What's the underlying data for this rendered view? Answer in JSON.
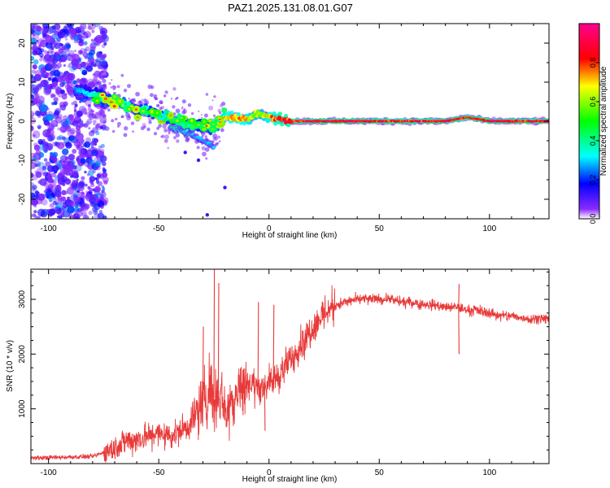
{
  "title": "PAZ1.2025.131.08.01.G07",
  "chart_data": [
    {
      "type": "heatmap",
      "title": "PAZ1.2025.131.08.01.G07",
      "xlabel": "Height of straight line (km)",
      "ylabel": "Frequency (Hz)",
      "xlim": [
        -108,
        127
      ],
      "ylim": [
        -25,
        25
      ],
      "xticks": [
        -100,
        -50,
        0,
        50,
        100
      ],
      "yticks": [
        -20,
        -10,
        0,
        10,
        20
      ],
      "grid": false,
      "colorbar": {
        "label": "Normalized spectral amplitude",
        "range": [
          0,
          1
        ],
        "ticks": [
          "0.0",
          "0.2",
          "0.4",
          "0.6",
          "0.8"
        ],
        "colormap": [
          "#ffffff",
          "#6a00ff",
          "#0000ff",
          "#00ffff",
          "#00ff00",
          "#ffff00",
          "#ff0000",
          "#ff0090"
        ]
      },
      "ridge": {
        "x": [
          -88,
          -80,
          -75,
          -70,
          -65,
          -60,
          -55,
          -50,
          -45,
          -40,
          -35,
          -30,
          -25,
          -20,
          -15,
          -10,
          -5,
          0,
          5,
          10,
          20,
          30,
          40,
          50,
          60,
          70,
          80,
          90,
          100,
          110,
          120,
          127
        ],
        "frequency": [
          8,
          7,
          6,
          5,
          4,
          3,
          2.5,
          1.5,
          0.5,
          -0.5,
          -1,
          -1.5,
          -1.5,
          1,
          1,
          0.5,
          2,
          1,
          0.5,
          0,
          0,
          0,
          0,
          0,
          0,
          0,
          0,
          1,
          0,
          0,
          0,
          0
        ],
        "amplitude": [
          0.25,
          0.35,
          0.45,
          0.5,
          0.55,
          0.45,
          0.45,
          0.45,
          0.45,
          0.5,
          0.5,
          0.4,
          0.5,
          0.7,
          0.75,
          0.7,
          0.6,
          0.7,
          0.85,
          0.85,
          0.9,
          0.9,
          0.9,
          0.85,
          0.85,
          0.85,
          0.9,
          0.85,
          0.9,
          0.9,
          0.85,
          0.9
        ]
      },
      "branch": {
        "x": [
          -45,
          -40,
          -35,
          -30,
          -25
        ],
        "frequency": [
          -1.5,
          -2.5,
          -3.5,
          -5,
          -6.5
        ],
        "amplitude": [
          0.4,
          0.35,
          0.3,
          0.3,
          0.3
        ]
      }
    },
    {
      "type": "line",
      "xlabel": "Height of straight line (km)",
      "ylabel": "SNR (10 * v/v)",
      "xlim": [
        -108,
        127
      ],
      "ylim": [
        0,
        3550
      ],
      "xticks": [
        -100,
        -50,
        0,
        50,
        100
      ],
      "yticks": [
        1000,
        2000,
        3000
      ],
      "color": "#e83a3a",
      "grid": false,
      "series": [
        {
          "x": [
            -108,
            -100,
            -90,
            -80,
            -75,
            -70,
            -65,
            -60,
            -55,
            -50,
            -45,
            -40,
            -35,
            -30,
            -27,
            -25,
            -22,
            -20,
            -17,
            -15,
            -12,
            -10,
            -5,
            0,
            5,
            10,
            15,
            20,
            25,
            30,
            35,
            40,
            45,
            50,
            55,
            60,
            65,
            70,
            75,
            80,
            85,
            90,
            95,
            100,
            105,
            110,
            115,
            120,
            127
          ],
          "values": [
            100,
            110,
            120,
            130,
            200,
            280,
            420,
            450,
            500,
            550,
            520,
            600,
            700,
            1100,
            1400,
            1200,
            1300,
            1000,
            1100,
            1300,
            1450,
            1500,
            1400,
            1450,
            1650,
            1900,
            2200,
            2500,
            2750,
            2900,
            2950,
            3000,
            3000,
            3000,
            3000,
            2950,
            2950,
            2900,
            2900,
            2850,
            2850,
            2800,
            2800,
            2750,
            2700,
            2700,
            2650,
            2650,
            2650
          ],
          "spikes": [
            [
              -25,
              3550
            ],
            [
              -23,
              3300
            ],
            [
              -30,
              2500
            ],
            [
              -5,
              2950
            ],
            [
              2,
              2900
            ],
            [
              -2,
              600
            ],
            [
              86,
              3280
            ],
            [
              86,
              2000
            ]
          ]
        }
      ]
    }
  ]
}
